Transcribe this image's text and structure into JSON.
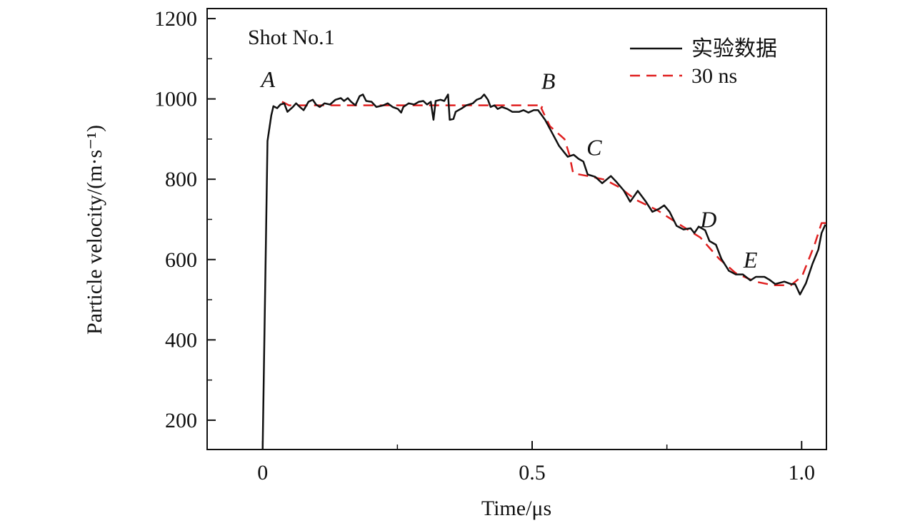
{
  "chart_data": {
    "type": "line",
    "title": "",
    "annotation_text": "Shot No.1",
    "xlabel": "Time/μs",
    "ylabel": "Particle velocity/(m·s⁻¹)",
    "xlim": [
      -0.103,
      1.046
    ],
    "ylim": [
      127,
      1225
    ],
    "x_ticks": [
      {
        "value": 0,
        "label": "0"
      },
      {
        "value": 0.5,
        "label": "0.5"
      },
      {
        "value": 1.0,
        "label": "1.0"
      }
    ],
    "x_minor_ticks": [
      0.25,
      0.75
    ],
    "y_ticks": [
      {
        "value": 200,
        "label": "200"
      },
      {
        "value": 400,
        "label": "400"
      },
      {
        "value": 600,
        "label": "600"
      },
      {
        "value": 800,
        "label": "800"
      },
      {
        "value": 1000,
        "label": "1000"
      },
      {
        "value": 1200,
        "label": "1200"
      }
    ],
    "y_minor_ticks": [
      300,
      500,
      700,
      900,
      1100
    ],
    "grid": false,
    "legend_position": "top-right",
    "point_labels": [
      {
        "label": "A",
        "x": 0.01,
        "y": 1030
      },
      {
        "label": "B",
        "x": 0.53,
        "y": 1025
      },
      {
        "label": "C",
        "x": 0.615,
        "y": 860
      },
      {
        "label": "D",
        "x": 0.827,
        "y": 680
      },
      {
        "label": "E",
        "x": 0.905,
        "y": 580
      }
    ],
    "series": [
      {
        "name": "实验数据",
        "color": "#111111",
        "style": "solid",
        "x": [
          0,
          0.009,
          0.016,
          0.02,
          0.027,
          0.033,
          0.04,
          0.046,
          0.056,
          0.062,
          0.069,
          0.076,
          0.085,
          0.093,
          0.099,
          0.106,
          0.115,
          0.125,
          0.135,
          0.145,
          0.151,
          0.158,
          0.164,
          0.172,
          0.18,
          0.186,
          0.192,
          0.202,
          0.211,
          0.224,
          0.232,
          0.241,
          0.251,
          0.257,
          0.261,
          0.271,
          0.281,
          0.29,
          0.298,
          0.305,
          0.312,
          0.317,
          0.321,
          0.33,
          0.337,
          0.344,
          0.347,
          0.354,
          0.358,
          0.37,
          0.378,
          0.39,
          0.397,
          0.405,
          0.411,
          0.418,
          0.423,
          0.43,
          0.436,
          0.444,
          0.454,
          0.463,
          0.476,
          0.484,
          0.493,
          0.503,
          0.511,
          0.524,
          0.536,
          0.55,
          0.566,
          0.577,
          0.586,
          0.595,
          0.603,
          0.617,
          0.63,
          0.646,
          0.656,
          0.67,
          0.682,
          0.696,
          0.71,
          0.723,
          0.735,
          0.745,
          0.755,
          0.768,
          0.781,
          0.794,
          0.801,
          0.809,
          0.821,
          0.829,
          0.841,
          0.851,
          0.865,
          0.878,
          0.891,
          0.905,
          0.915,
          0.931,
          0.94,
          0.951,
          0.968,
          0.98,
          0.988,
          0.997,
          1.008,
          1.02,
          1.031,
          1.037,
          1.044
        ],
        "y": [
          127,
          895,
          959,
          982,
          977,
          986,
          989,
          968,
          980,
          989,
          980,
          972,
          993,
          998,
          986,
          980,
          989,
          986,
          998,
          1002,
          995,
          1002,
          993,
          984,
          1007,
          1011,
          995,
          993,
          980,
          984,
          989,
          980,
          975,
          966,
          980,
          989,
          986,
          993,
          995,
          986,
          993,
          948,
          995,
          998,
          995,
          1011,
          948,
          950,
          968,
          977,
          984,
          989,
          998,
          1002,
          1011,
          998,
          980,
          984,
          975,
          980,
          975,
          968,
          968,
          972,
          966,
          972,
          972,
          948,
          918,
          883,
          856,
          861,
          851,
          844,
          812,
          806,
          790,
          808,
          794,
          772,
          744,
          771,
          746,
          719,
          726,
          735,
          719,
          684,
          675,
          678,
          666,
          682,
          673,
          646,
          637,
          602,
          572,
          563,
          563,
          548,
          557,
          557,
          550,
          539,
          545,
          539,
          539,
          513,
          541,
          589,
          625,
          666,
          687
        ]
      },
      {
        "name": "30 ns",
        "color": "#e02020",
        "style": "dashed",
        "x": [
          0.036,
          0.049,
          0.52,
          0.517,
          0.533,
          0.56,
          0.569,
          0.576,
          0.603,
          0.635,
          0.662,
          0.692,
          0.732,
          0.768,
          0.812,
          0.847,
          0.878,
          0.914,
          0.948,
          0.98,
          1.001,
          1.024,
          1.037,
          1.046
        ],
        "y": [
          993,
          984,
          984,
          977,
          932,
          900,
          861,
          815,
          808,
          799,
          780,
          749,
          723,
          692,
          655,
          602,
          566,
          545,
          536,
          536,
          559,
          637,
          691,
          691
        ]
      }
    ]
  }
}
